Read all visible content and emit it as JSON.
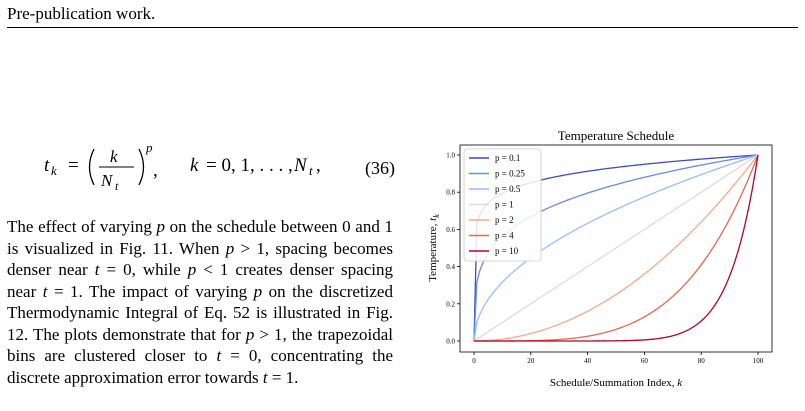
{
  "page": {
    "header": "Pre-publication work."
  },
  "equation": {
    "lhs": "t",
    "lhs_sub": "k",
    "eq": "=",
    "num": "k",
    "den": "N",
    "den_sub": "t",
    "exp": "p",
    "comma": ",",
    "range_var": "k",
    "range_eq": "= 0, 1, . . . , ",
    "range_end": "N",
    "range_end_sub": "t",
    "trail": ",",
    "number": "(36)"
  },
  "paragraph": {
    "seg1": "The effect of varying ",
    "p1": "p",
    "seg2": " on the schedule between 0 and 1 is visualized in Fig. 11. When ",
    "p2": "p",
    "seg3": " > 1, spacing becomes denser near ",
    "t1": "t",
    "seg4": " = 0, while ",
    "p3": "p",
    "seg5": " < 1 creates denser spacing near ",
    "t2": "t",
    "seg6": " = 1. The impact of varying ",
    "p4": "p",
    "seg7": " on the discretized Thermodynamic Integral of Eq. 52 is illustrated in Fig. 12. The plots demonstrate that for ",
    "p5": "p",
    "seg8": " > 1, the trapezoidal bins are clustered closer to ",
    "t3": "t",
    "seg9": " = 0, concentrating the discrete approximation error towards ",
    "t4": "t",
    "seg10": " = 1."
  },
  "chart_data": {
    "type": "line",
    "title": "Temperature Schedule",
    "xlabel": "Schedule/Summation Index, ",
    "xlabel_var": "k",
    "ylabel": "Temperature, ",
    "ylabel_var": "t",
    "ylabel_sub": "k",
    "xlim": [
      0,
      100
    ],
    "ylim": [
      0,
      1
    ],
    "xticks": [
      "0",
      "20",
      "40",
      "60",
      "80",
      "100"
    ],
    "yticks": [
      "0.0",
      "0.2",
      "0.4",
      "0.6",
      "0.8",
      "1.0"
    ],
    "function": "t = (k/100)^p",
    "N": 100,
    "legend_position": "upper left",
    "grid": false,
    "series": [
      {
        "name": "p = 0.1",
        "p": 0.1,
        "color": "#3b4cc0"
      },
      {
        "name": "p = 0.25",
        "p": 0.25,
        "color": "#6788ee"
      },
      {
        "name": "p = 0.5",
        "p": 0.5,
        "color": "#9abbff"
      },
      {
        "name": "p = 1",
        "p": 1,
        "color": "#dddcdc"
      },
      {
        "name": "p = 2",
        "p": 2,
        "color": "#f7a889"
      },
      {
        "name": "p = 4",
        "p": 4,
        "color": "#e26952"
      },
      {
        "name": "p = 10",
        "p": 10,
        "color": "#b40426"
      }
    ]
  }
}
